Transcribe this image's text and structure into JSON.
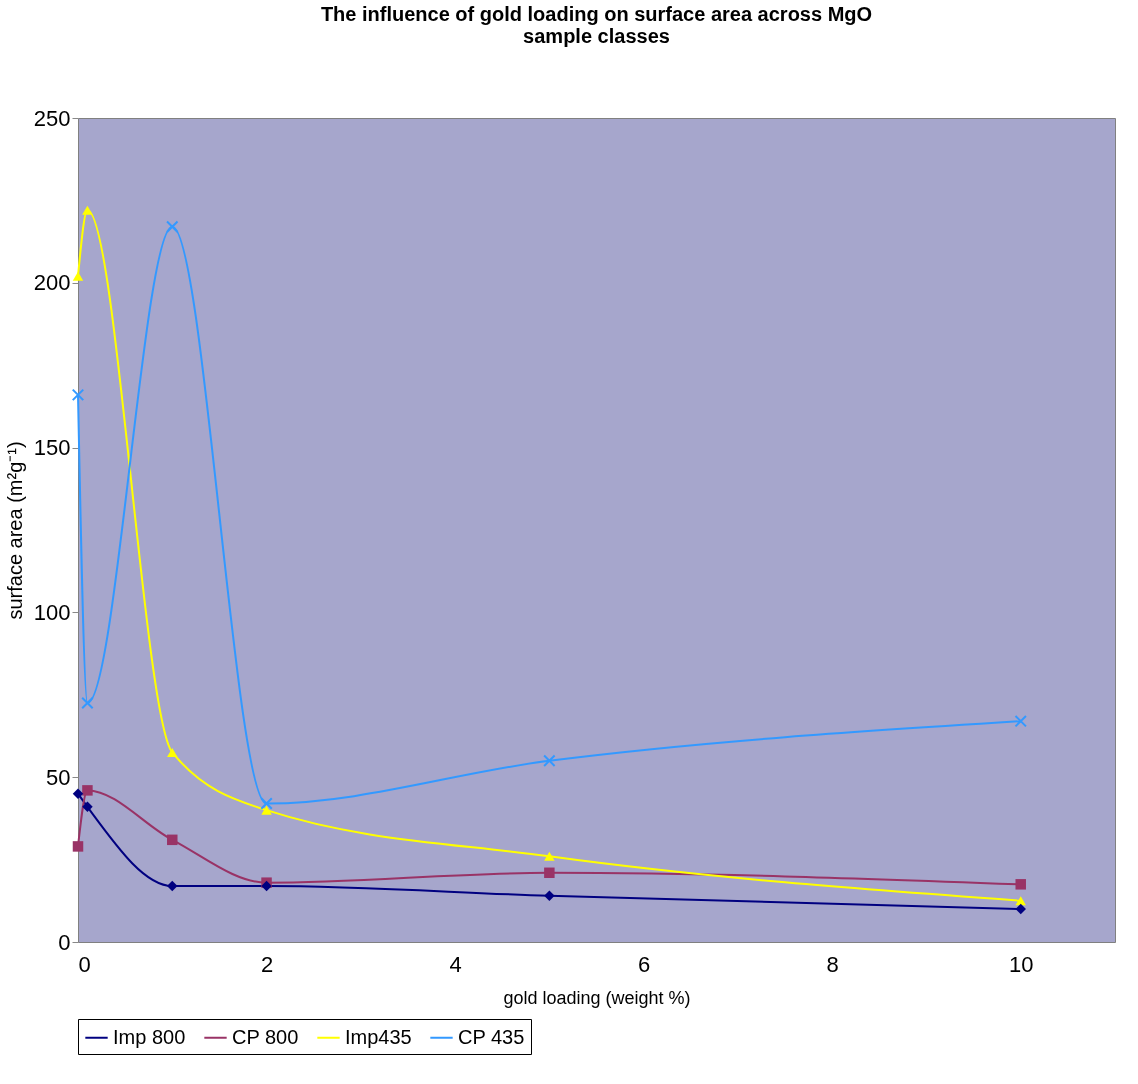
{
  "chart_data": {
    "type": "line",
    "title": "The influence of gold loading on surface area across MgO sample classes",
    "xlabel": "gold loading (weight %)",
    "ylabel": "surface area (m²g⁻¹)",
    "xlim": [
      0,
      11
    ],
    "xticks": [
      0,
      2,
      4,
      6,
      8,
      10
    ],
    "ylim": [
      0,
      250
    ],
    "yticks": [
      0,
      50,
      100,
      150,
      200,
      250
    ],
    "grid": false,
    "legend": "bottom",
    "series": [
      {
        "name": "Imp 800",
        "color": "#000080",
        "marker": "diamond",
        "x": [
          0,
          0.1,
          1,
          2,
          5,
          10
        ],
        "values": [
          45,
          41,
          17,
          17,
          14,
          10
        ]
      },
      {
        "name": "CP 800",
        "color": "#993366",
        "marker": "square",
        "x": [
          0,
          0.1,
          1,
          2,
          5,
          10
        ],
        "values": [
          29,
          46,
          31,
          18,
          21,
          17.5
        ]
      },
      {
        "name": "Imp435",
        "color": "#ffff00",
        "marker": "triangle",
        "x": [
          0,
          0.1,
          1,
          2,
          5,
          10
        ],
        "values": [
          202,
          222,
          57.5,
          40,
          26,
          12.5
        ]
      },
      {
        "name": "CP 435",
        "color": "#3399ff",
        "marker": "cross",
        "x": [
          0,
          0.1,
          1,
          2,
          5,
          10
        ],
        "values": [
          166,
          72.5,
          217,
          42,
          55,
          67
        ]
      }
    ]
  }
}
